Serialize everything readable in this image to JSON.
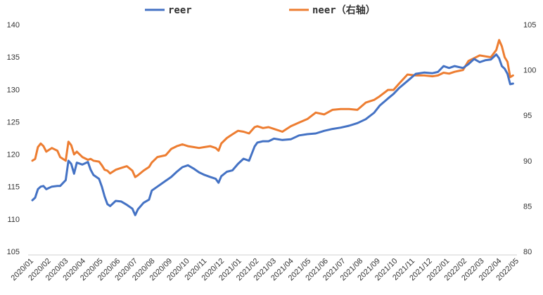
{
  "chart_data": {
    "type": "line",
    "title": "",
    "xlabel": "",
    "ylabel": "",
    "x_ticks": [
      "2020/01",
      "2020/02",
      "2020/03",
      "2020/04",
      "2020/05",
      "2020/06",
      "2020/07",
      "2020/08",
      "2020/09",
      "2020/10",
      "2020/11",
      "2020/12",
      "2021/01",
      "2021/02",
      "2021/03",
      "2021/04",
      "2021/05",
      "2021/06",
      "2021/07",
      "2021/08",
      "2021/09",
      "2021/10",
      "2021/11",
      "2021/12",
      "2022/01",
      "2022/02",
      "2022/03",
      "2022/04",
      "2022/05"
    ],
    "y_left_ticks": [
      "105",
      "110",
      "115",
      "120",
      "125",
      "130",
      "135",
      "140"
    ],
    "y_right_ticks": [
      "80",
      "85",
      "90",
      "95",
      "100",
      "105"
    ],
    "y_left_lim": [
      105,
      140
    ],
    "y_right_lim": [
      80,
      105
    ],
    "grid": false,
    "legend_position": "top",
    "series": [
      {
        "name": "reer",
        "axis": "left",
        "color": "#4472C4",
        "points": [
          [
            0.0,
            112.9
          ],
          [
            0.1,
            113.3
          ],
          [
            0.2,
            114.6
          ],
          [
            0.3,
            115.0
          ],
          [
            0.4,
            115.1
          ],
          [
            0.5,
            114.6
          ],
          [
            0.7,
            115.0
          ],
          [
            0.9,
            115.1
          ],
          [
            1.0,
            115.1
          ],
          [
            1.2,
            116.0
          ],
          [
            1.3,
            119.0
          ],
          [
            1.4,
            118.5
          ],
          [
            1.5,
            117.0
          ],
          [
            1.6,
            118.7
          ],
          [
            1.8,
            118.4
          ],
          [
            2.0,
            118.8
          ],
          [
            2.1,
            117.6
          ],
          [
            2.2,
            116.8
          ],
          [
            2.4,
            116.2
          ],
          [
            2.5,
            115.0
          ],
          [
            2.6,
            113.5
          ],
          [
            2.7,
            112.3
          ],
          [
            2.8,
            112.0
          ],
          [
            3.0,
            112.8
          ],
          [
            3.2,
            112.7
          ],
          [
            3.4,
            112.2
          ],
          [
            3.6,
            111.6
          ],
          [
            3.7,
            110.6
          ],
          [
            3.8,
            111.5
          ],
          [
            4.0,
            112.5
          ],
          [
            4.2,
            113.0
          ],
          [
            4.3,
            114.4
          ],
          [
            4.5,
            115.0
          ],
          [
            4.8,
            115.9
          ],
          [
            5.0,
            116.5
          ],
          [
            5.2,
            117.3
          ],
          [
            5.4,
            118.0
          ],
          [
            5.6,
            118.3
          ],
          [
            5.8,
            117.8
          ],
          [
            6.0,
            117.2
          ],
          [
            6.2,
            116.8
          ],
          [
            6.4,
            116.5
          ],
          [
            6.6,
            116.2
          ],
          [
            6.7,
            115.6
          ],
          [
            6.8,
            116.6
          ],
          [
            7.0,
            117.3
          ],
          [
            7.2,
            117.5
          ],
          [
            7.4,
            118.5
          ],
          [
            7.6,
            119.3
          ],
          [
            7.8,
            119.0
          ],
          [
            8.0,
            121.2
          ],
          [
            8.1,
            121.8
          ],
          [
            8.3,
            122.0
          ],
          [
            8.5,
            122.0
          ],
          [
            8.7,
            122.4
          ],
          [
            9.0,
            122.2
          ],
          [
            9.3,
            122.3
          ],
          [
            9.6,
            122.9
          ],
          [
            9.9,
            123.1
          ],
          [
            10.2,
            123.2
          ],
          [
            10.5,
            123.6
          ],
          [
            10.8,
            123.9
          ],
          [
            11.1,
            124.1
          ],
          [
            11.4,
            124.4
          ],
          [
            11.7,
            124.8
          ],
          [
            12.0,
            125.4
          ],
          [
            12.3,
            126.4
          ],
          [
            12.5,
            127.5
          ],
          [
            12.8,
            128.6
          ],
          [
            13.0,
            129.3
          ],
          [
            13.2,
            130.2
          ],
          [
            13.5,
            131.3
          ],
          [
            13.8,
            132.4
          ],
          [
            14.1,
            132.6
          ],
          [
            14.4,
            132.5
          ],
          [
            14.6,
            132.7
          ],
          [
            14.8,
            133.6
          ],
          [
            15.0,
            133.3
          ],
          [
            15.2,
            133.6
          ],
          [
            15.5,
            133.3
          ],
          [
            15.7,
            133.9
          ],
          [
            15.9,
            134.7
          ],
          [
            16.1,
            134.2
          ],
          [
            16.3,
            134.5
          ],
          [
            16.5,
            134.6
          ],
          [
            16.7,
            135.4
          ],
          [
            16.8,
            134.8
          ],
          [
            16.9,
            133.6
          ],
          [
            17.0,
            133.2
          ],
          [
            17.1,
            132.4
          ],
          [
            17.2,
            130.8
          ],
          [
            17.3,
            130.9
          ]
        ]
      },
      {
        "name": "neer（右轴）",
        "axis": "right",
        "color": "#ED7D31",
        "points": [
          [
            0.0,
            90.0
          ],
          [
            0.1,
            90.2
          ],
          [
            0.2,
            91.5
          ],
          [
            0.3,
            91.9
          ],
          [
            0.4,
            91.6
          ],
          [
            0.5,
            91.0
          ],
          [
            0.7,
            91.4
          ],
          [
            0.9,
            91.1
          ],
          [
            1.0,
            90.4
          ],
          [
            1.2,
            90.0
          ],
          [
            1.3,
            92.1
          ],
          [
            1.4,
            91.7
          ],
          [
            1.5,
            90.7
          ],
          [
            1.6,
            91.0
          ],
          [
            1.8,
            90.4
          ],
          [
            2.0,
            90.1
          ],
          [
            2.1,
            90.2
          ],
          [
            2.2,
            90.0
          ],
          [
            2.4,
            89.9
          ],
          [
            2.5,
            89.5
          ],
          [
            2.6,
            89.0
          ],
          [
            2.7,
            88.9
          ],
          [
            2.8,
            88.6
          ],
          [
            3.0,
            89.0
          ],
          [
            3.2,
            89.2
          ],
          [
            3.4,
            89.4
          ],
          [
            3.6,
            88.9
          ],
          [
            3.7,
            88.2
          ],
          [
            3.8,
            88.4
          ],
          [
            4.0,
            88.9
          ],
          [
            4.2,
            89.3
          ],
          [
            4.3,
            89.8
          ],
          [
            4.5,
            90.4
          ],
          [
            4.8,
            90.6
          ],
          [
            5.0,
            91.3
          ],
          [
            5.2,
            91.6
          ],
          [
            5.4,
            91.8
          ],
          [
            5.6,
            91.6
          ],
          [
            5.8,
            91.5
          ],
          [
            6.0,
            91.4
          ],
          [
            6.2,
            91.5
          ],
          [
            6.4,
            91.6
          ],
          [
            6.6,
            91.4
          ],
          [
            6.7,
            91.1
          ],
          [
            6.8,
            91.9
          ],
          [
            7.0,
            92.5
          ],
          [
            7.2,
            92.9
          ],
          [
            7.4,
            93.3
          ],
          [
            7.6,
            93.2
          ],
          [
            7.8,
            93.0
          ],
          [
            8.0,
            93.7
          ],
          [
            8.1,
            93.8
          ],
          [
            8.3,
            93.6
          ],
          [
            8.5,
            93.7
          ],
          [
            8.7,
            93.5
          ],
          [
            9.0,
            93.2
          ],
          [
            9.3,
            93.8
          ],
          [
            9.6,
            94.2
          ],
          [
            9.9,
            94.6
          ],
          [
            10.2,
            95.3
          ],
          [
            10.5,
            95.1
          ],
          [
            10.8,
            95.6
          ],
          [
            11.1,
            95.7
          ],
          [
            11.4,
            95.7
          ],
          [
            11.7,
            95.6
          ],
          [
            12.0,
            96.4
          ],
          [
            12.3,
            96.7
          ],
          [
            12.5,
            97.1
          ],
          [
            12.8,
            97.8
          ],
          [
            13.0,
            97.8
          ],
          [
            13.2,
            98.5
          ],
          [
            13.5,
            99.5
          ],
          [
            13.8,
            99.4
          ],
          [
            14.1,
            99.4
          ],
          [
            14.4,
            99.3
          ],
          [
            14.6,
            99.4
          ],
          [
            14.8,
            99.7
          ],
          [
            15.0,
            99.6
          ],
          [
            15.2,
            99.8
          ],
          [
            15.5,
            100.0
          ],
          [
            15.7,
            101.0
          ],
          [
            15.9,
            101.3
          ],
          [
            16.1,
            101.6
          ],
          [
            16.3,
            101.5
          ],
          [
            16.5,
            101.4
          ],
          [
            16.7,
            102.2
          ],
          [
            16.8,
            103.3
          ],
          [
            16.9,
            102.6
          ],
          [
            17.0,
            101.4
          ],
          [
            17.1,
            100.9
          ],
          [
            17.2,
            99.2
          ],
          [
            17.3,
            99.4
          ]
        ]
      }
    ]
  }
}
